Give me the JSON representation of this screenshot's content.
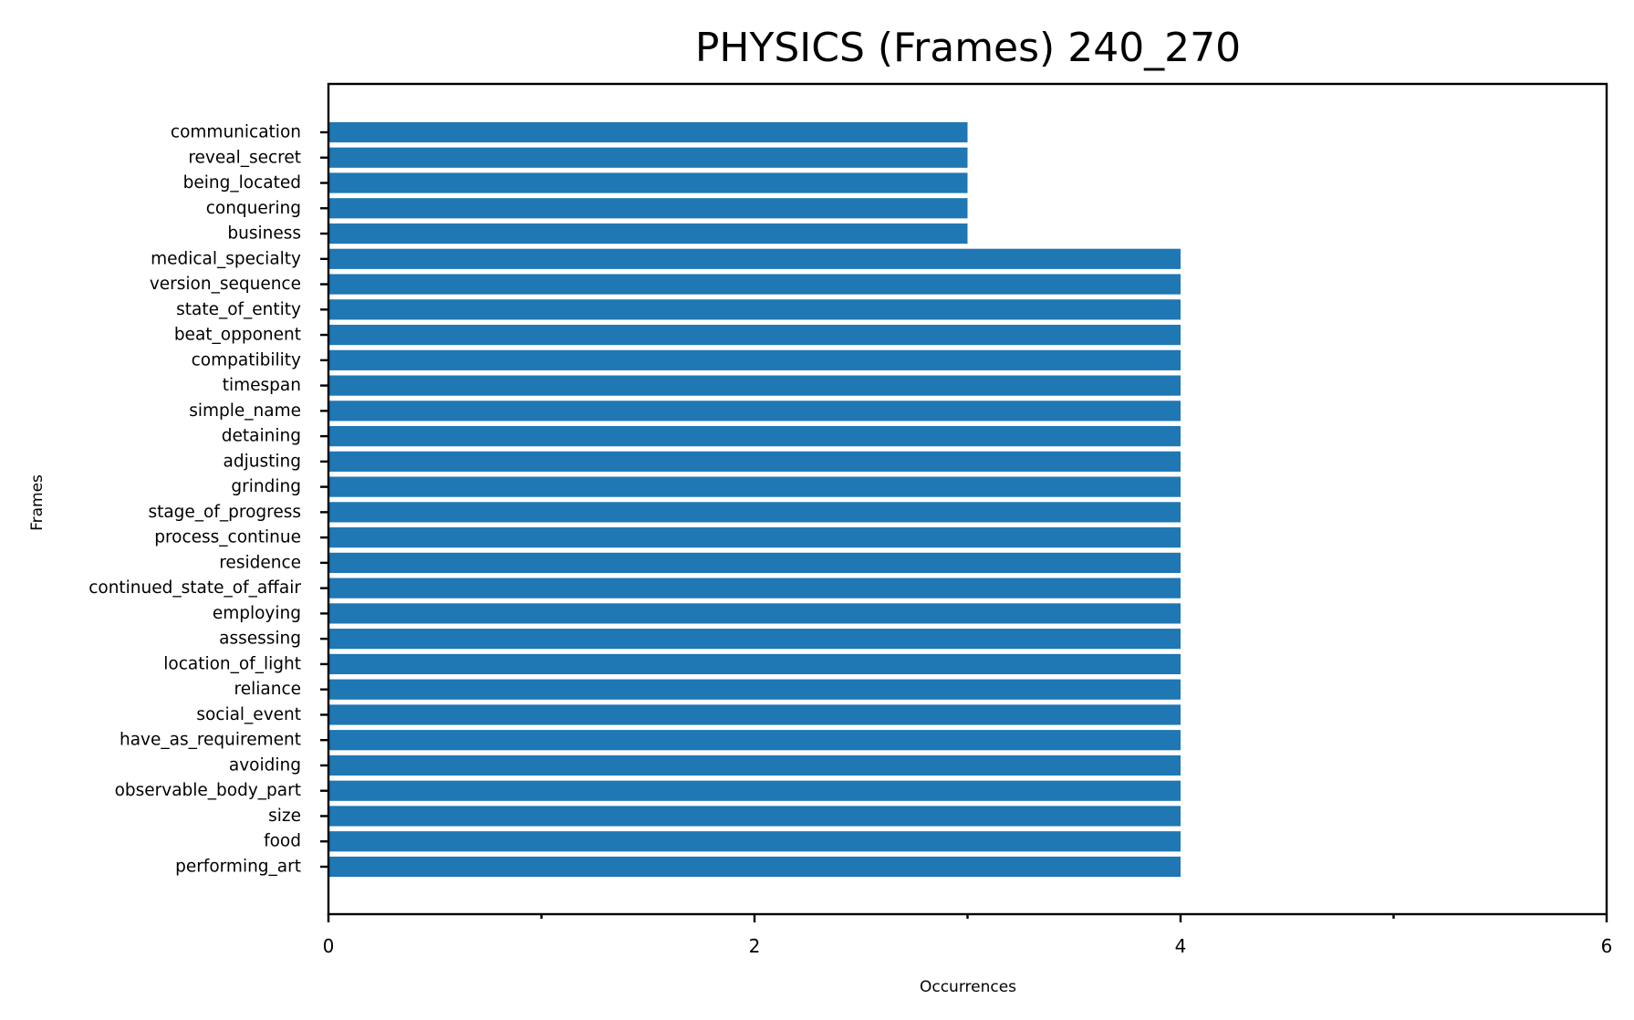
{
  "chart_data": {
    "type": "bar",
    "orientation": "horizontal",
    "title": "PHYSICS (Frames) 240_270",
    "xlabel": "Occurrences",
    "ylabel": "Frames",
    "xlim": [
      0,
      6
    ],
    "x_major_ticks": [
      0,
      2,
      4,
      6
    ],
    "x_minor_ticks": [
      1,
      3,
      5
    ],
    "x_tick_labels": [
      "0",
      "2",
      "4",
      "6"
    ],
    "grid": false,
    "legend": "none",
    "bar_color": "#1f77b4",
    "categories": [
      "communication",
      "reveal_secret",
      "being_located",
      "conquering",
      "business",
      "medical_specialty",
      "version_sequence",
      "state_of_entity",
      "beat_opponent",
      "compatibility",
      "timespan",
      "simple_name",
      "detaining",
      "adjusting",
      "grinding",
      "stage_of_progress",
      "process_continue",
      "residence",
      "continued_state_of_affair",
      "employing",
      "assessing",
      "location_of_light",
      "reliance",
      "social_event",
      "have_as_requirement",
      "avoiding",
      "observable_body_part",
      "size",
      "food",
      "performing_art"
    ],
    "values": [
      3,
      3,
      3,
      3,
      3,
      4,
      4,
      4,
      4,
      4,
      4,
      4,
      4,
      4,
      4,
      4,
      4,
      4,
      4,
      4,
      4,
      4,
      4,
      4,
      4,
      4,
      4,
      4,
      4,
      4
    ]
  }
}
